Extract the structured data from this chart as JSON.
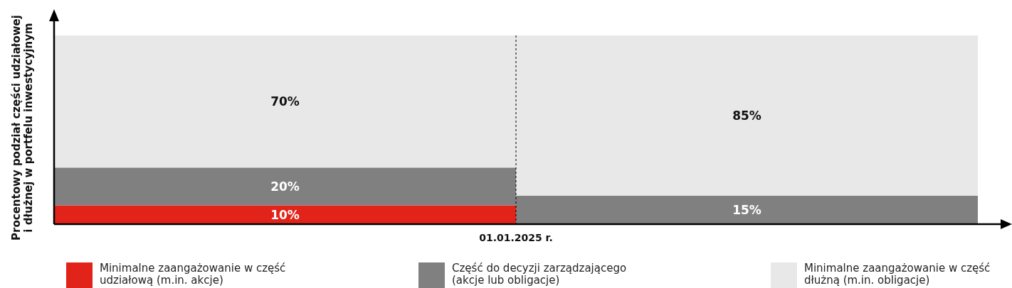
{
  "chart_data": {
    "type": "bar",
    "stacked": true,
    "legend": "bottom",
    "ylabel": "Procentowy podział części udziałowej i dłużnej w portfelu inwestycyjnym",
    "annotations": [
      "01.01.2025 r."
    ],
    "categories": [
      null,
      null
    ],
    "series": [
      {
        "name": "Minimalne zaangażowanie w część udziałową (m.in. akcje)",
        "color": "#e2231a",
        "values": [
          10,
          null
        ],
        "value_labels": [
          "10%",
          null
        ]
      },
      {
        "name": "Część do decyzji zarządzającego (akcje lub obligacje)",
        "color": "#808080",
        "values": [
          20,
          15
        ],
        "value_labels": [
          "20%",
          "15%"
        ]
      },
      {
        "name": "Minimalne zaangażowanie w część dłużną (m.in. obligacje)",
        "color": "#e8e8e8",
        "values": [
          70,
          85
        ],
        "value_labels": [
          "70%",
          "85%"
        ]
      }
    ]
  }
}
